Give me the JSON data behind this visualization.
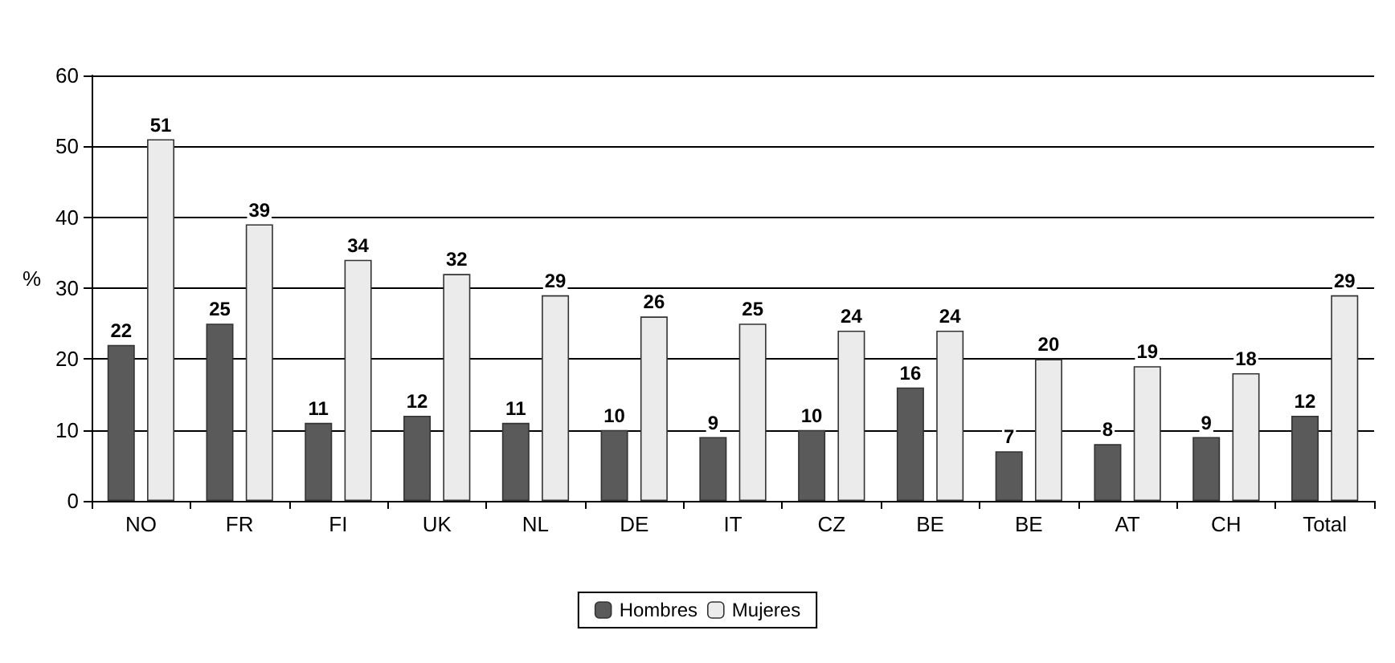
{
  "chart_data": {
    "type": "bar",
    "ylabel": "%",
    "categories": [
      "NO",
      "FR",
      "FI",
      "UK",
      "NL",
      "DE",
      "IT",
      "CZ",
      "BE",
      "BE",
      "AT",
      "CH",
      "Total"
    ],
    "series": [
      {
        "name": "Hombres",
        "color": "#5a5a5a",
        "values": [
          22,
          25,
          11,
          12,
          11,
          10,
          9,
          10,
          16,
          7,
          8,
          9,
          12
        ]
      },
      {
        "name": "Mujeres",
        "color": "#ebebeb",
        "values": [
          51,
          39,
          34,
          32,
          29,
          26,
          25,
          24,
          24,
          20,
          19,
          18,
          29
        ]
      }
    ],
    "ylim": [
      0,
      60
    ],
    "yticks": [
      0,
      10,
      20,
      30,
      40,
      50,
      60
    ],
    "grid": "y",
    "legend": "bottom",
    "data_labels": true
  }
}
